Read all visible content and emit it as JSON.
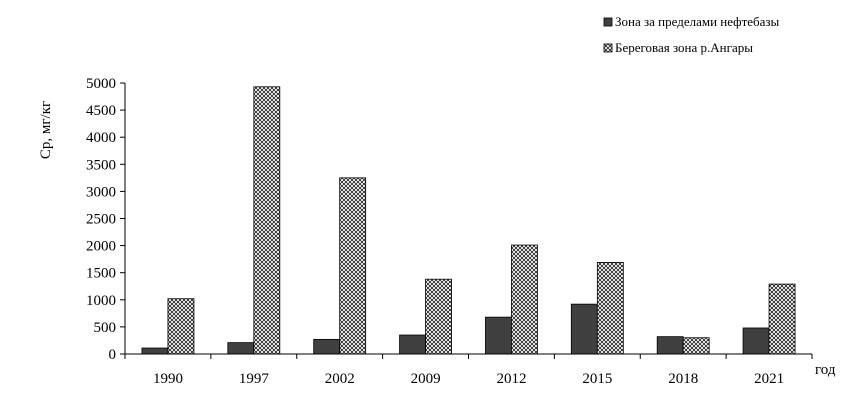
{
  "chart_data": {
    "type": "bar",
    "title": "",
    "xlabel": "год",
    "ylabel": "Ср, мг/кг",
    "ylim": [
      0,
      5000
    ],
    "yticks": [
      0,
      500,
      1000,
      1500,
      2000,
      2500,
      3000,
      3500,
      4000,
      4500,
      5000
    ],
    "grid": false,
    "legend_position": "top-right",
    "categories": [
      "1990",
      "1997",
      "2002",
      "2009",
      "2012",
      "2015",
      "2018",
      "2021"
    ],
    "series": [
      {
        "name": "Зона за пределами нефтебазы",
        "color": "#404040",
        "fill": "solid",
        "values": [
          110,
          210,
          270,
          350,
          680,
          920,
          320,
          480
        ]
      },
      {
        "name": "Береговая зона р.Ангары",
        "color": "#ffffff",
        "fill": "crosshatch",
        "values": [
          1020,
          4930,
          3250,
          1380,
          2010,
          1690,
          300,
          1290
        ]
      }
    ]
  }
}
